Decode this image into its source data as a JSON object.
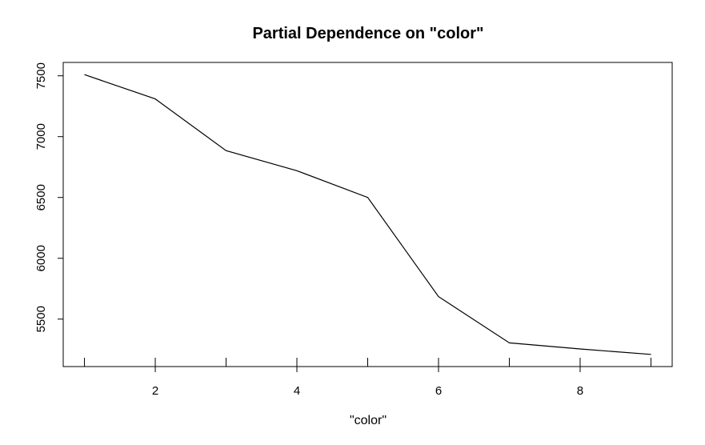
{
  "chart_data": {
    "type": "line",
    "title": "Partial Dependence on \"color\"",
    "xlabel": "\"color\"",
    "ylabel": "",
    "x": [
      1,
      2,
      3,
      4,
      5,
      6,
      7,
      8,
      9
    ],
    "y": [
      7510,
      7310,
      6885,
      6720,
      6500,
      5685,
      5305,
      5255,
      5210
    ],
    "xlim": [
      0.7,
      9.3
    ],
    "ylim": [
      5110,
      7610
    ],
    "xticks": [
      2,
      4,
      6,
      8
    ],
    "yticks": [
      5500,
      6000,
      6500,
      7000,
      7500
    ],
    "xtick_labels": [
      "2",
      "4",
      "6",
      "8"
    ],
    "ytick_labels": [
      "5500",
      "6000",
      "6500",
      "7000",
      "7500"
    ],
    "rug": [
      1,
      2,
      3,
      4,
      5,
      6,
      7,
      8,
      9
    ],
    "grid": false,
    "legend": null
  }
}
